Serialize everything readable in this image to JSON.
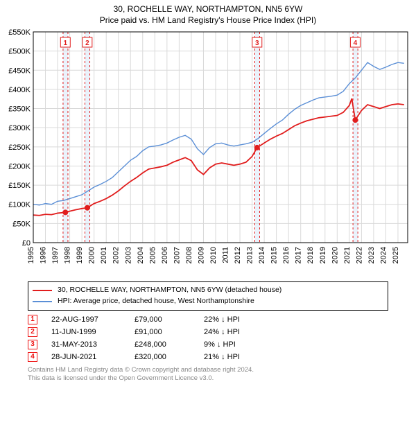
{
  "title": "30, ROCHELLE WAY, NORTHAMPTON, NN5 6YW",
  "subtitle": "Price paid vs. HM Land Registry's House Price Index (HPI)",
  "chart": {
    "type": "line",
    "background_color": "#ffffff",
    "plot_border_color": "#000000",
    "grid_color": "#d9d9d9",
    "band_fill": "#eaf2fb",
    "band_dash_color": "#e11d1d",
    "marker_border_color": "#e11d1d",
    "marker_fill": "#ffffff",
    "marker_text_color": "#e11d1d",
    "y": {
      "min": 0,
      "max": 550000,
      "step": 50000,
      "prefix": "£",
      "suffix": "K",
      "divide": 1000,
      "fontsize": 11
    },
    "x": {
      "min": 1995,
      "max": 2025.8,
      "ticks": [
        1995,
        1996,
        1997,
        1998,
        1999,
        2000,
        2001,
        2002,
        2003,
        2004,
        2005,
        2006,
        2007,
        2008,
        2009,
        2010,
        2011,
        2012,
        2013,
        2014,
        2015,
        2016,
        2017,
        2018,
        2019,
        2020,
        2021,
        2022,
        2023,
        2024,
        2025
      ],
      "fontsize": 11
    },
    "series": [
      {
        "id": "hpi",
        "label": "HPI: Average price, detached house, West Northamptonshire",
        "color": "#5b8fd6",
        "line_width": 1.4,
        "points": [
          [
            1995.0,
            100000
          ],
          [
            1995.5,
            98000
          ],
          [
            1996.0,
            102000
          ],
          [
            1996.5,
            100000
          ],
          [
            1997.0,
            108000
          ],
          [
            1997.5,
            110000
          ],
          [
            1998.0,
            115000
          ],
          [
            1998.5,
            120000
          ],
          [
            1999.0,
            125000
          ],
          [
            1999.5,
            135000
          ],
          [
            2000.0,
            145000
          ],
          [
            2000.5,
            152000
          ],
          [
            2001.0,
            160000
          ],
          [
            2001.5,
            170000
          ],
          [
            2002.0,
            185000
          ],
          [
            2002.5,
            200000
          ],
          [
            2003.0,
            215000
          ],
          [
            2003.5,
            225000
          ],
          [
            2004.0,
            240000
          ],
          [
            2004.5,
            250000
          ],
          [
            2005.0,
            252000
          ],
          [
            2005.5,
            255000
          ],
          [
            2006.0,
            260000
          ],
          [
            2006.5,
            268000
          ],
          [
            2007.0,
            275000
          ],
          [
            2007.5,
            280000
          ],
          [
            2008.0,
            270000
          ],
          [
            2008.5,
            245000
          ],
          [
            2009.0,
            230000
          ],
          [
            2009.5,
            248000
          ],
          [
            2010.0,
            258000
          ],
          [
            2010.5,
            260000
          ],
          [
            2011.0,
            255000
          ],
          [
            2011.5,
            252000
          ],
          [
            2012.0,
            255000
          ],
          [
            2012.5,
            258000
          ],
          [
            2013.0,
            262000
          ],
          [
            2013.5,
            272000
          ],
          [
            2014.0,
            285000
          ],
          [
            2014.5,
            298000
          ],
          [
            2015.0,
            310000
          ],
          [
            2015.5,
            320000
          ],
          [
            2016.0,
            335000
          ],
          [
            2016.5,
            348000
          ],
          [
            2017.0,
            358000
          ],
          [
            2017.5,
            365000
          ],
          [
            2018.0,
            372000
          ],
          [
            2018.5,
            378000
          ],
          [
            2019.0,
            380000
          ],
          [
            2019.5,
            382000
          ],
          [
            2020.0,
            385000
          ],
          [
            2020.5,
            395000
          ],
          [
            2021.0,
            415000
          ],
          [
            2021.5,
            430000
          ],
          [
            2022.0,
            450000
          ],
          [
            2022.5,
            470000
          ],
          [
            2023.0,
            460000
          ],
          [
            2023.5,
            452000
          ],
          [
            2024.0,
            458000
          ],
          [
            2024.5,
            465000
          ],
          [
            2025.0,
            470000
          ],
          [
            2025.5,
            468000
          ]
        ]
      },
      {
        "id": "price_paid",
        "label": "30, ROCHELLE WAY, NORTHAMPTON, NN5 6YW (detached house)",
        "color": "#e11d1d",
        "line_width": 1.8,
        "sale_dot_radius": 4,
        "sale_dot_fill": "#e11d1d",
        "points": [
          [
            1995.0,
            72000
          ],
          [
            1995.5,
            71000
          ],
          [
            1996.0,
            74000
          ],
          [
            1996.5,
            73000
          ],
          [
            1997.0,
            77000
          ],
          [
            1997.64,
            79000
          ],
          [
            1998.0,
            82000
          ],
          [
            1998.5,
            86000
          ],
          [
            1999.0,
            89000
          ],
          [
            1999.44,
            91000
          ],
          [
            2000.0,
            102000
          ],
          [
            2000.5,
            108000
          ],
          [
            2001.0,
            115000
          ],
          [
            2001.5,
            124000
          ],
          [
            2002.0,
            135000
          ],
          [
            2002.5,
            148000
          ],
          [
            2003.0,
            160000
          ],
          [
            2003.5,
            170000
          ],
          [
            2004.0,
            182000
          ],
          [
            2004.5,
            192000
          ],
          [
            2005.0,
            195000
          ],
          [
            2005.5,
            198000
          ],
          [
            2006.0,
            202000
          ],
          [
            2006.5,
            210000
          ],
          [
            2007.0,
            216000
          ],
          [
            2007.5,
            222000
          ],
          [
            2008.0,
            214000
          ],
          [
            2008.5,
            190000
          ],
          [
            2009.0,
            178000
          ],
          [
            2009.5,
            195000
          ],
          [
            2010.0,
            205000
          ],
          [
            2010.5,
            208000
          ],
          [
            2011.0,
            205000
          ],
          [
            2011.5,
            202000
          ],
          [
            2012.0,
            205000
          ],
          [
            2012.5,
            210000
          ],
          [
            2013.0,
            225000
          ],
          [
            2013.41,
            248000
          ],
          [
            2014.0,
            260000
          ],
          [
            2014.5,
            270000
          ],
          [
            2015.0,
            278000
          ],
          [
            2015.5,
            285000
          ],
          [
            2016.0,
            295000
          ],
          [
            2016.5,
            305000
          ],
          [
            2017.0,
            312000
          ],
          [
            2017.5,
            318000
          ],
          [
            2018.0,
            322000
          ],
          [
            2018.5,
            326000
          ],
          [
            2019.0,
            328000
          ],
          [
            2019.5,
            330000
          ],
          [
            2020.0,
            332000
          ],
          [
            2020.5,
            340000
          ],
          [
            2021.0,
            358000
          ],
          [
            2021.2,
            376000
          ],
          [
            2021.49,
            320000
          ],
          [
            2022.0,
            345000
          ],
          [
            2022.5,
            360000
          ],
          [
            2023.0,
            355000
          ],
          [
            2023.5,
            350000
          ],
          [
            2024.0,
            355000
          ],
          [
            2024.5,
            360000
          ],
          [
            2025.0,
            362000
          ],
          [
            2025.5,
            360000
          ]
        ]
      }
    ],
    "sale_markers": [
      {
        "n": "1",
        "x": 1997.64,
        "y": 79000,
        "band": [
          1997.45,
          1997.85
        ]
      },
      {
        "n": "2",
        "x": 1999.44,
        "y": 91000,
        "band": [
          1999.25,
          1999.65
        ]
      },
      {
        "n": "3",
        "x": 2013.41,
        "y": 248000,
        "band": [
          2013.22,
          2013.62
        ]
      },
      {
        "n": "4",
        "x": 2021.49,
        "y": 320000,
        "band": [
          2021.3,
          2021.7
        ]
      }
    ]
  },
  "legend": {
    "border_color": "#000000",
    "fontsize": 10.5,
    "items": [
      {
        "series_id": "price_paid"
      },
      {
        "series_id": "hpi"
      }
    ]
  },
  "sales_table": {
    "fontsize": 11,
    "arrow_glyph": "↓",
    "hpi_label": "HPI",
    "rows": [
      {
        "n": "1",
        "date": "22-AUG-1997",
        "price": "£79,000",
        "diff": "22%"
      },
      {
        "n": "2",
        "date": "11-JUN-1999",
        "price": "£91,000",
        "diff": "24%"
      },
      {
        "n": "3",
        "date": "31-MAY-2013",
        "price": "£248,000",
        "diff": "9%"
      },
      {
        "n": "4",
        "date": "28-JUN-2021",
        "price": "£320,000",
        "diff": "21%"
      }
    ]
  },
  "footnote": {
    "line1": "Contains HM Land Registry data © Crown copyright and database right 2024.",
    "line2": "This data is licensed under the Open Government Licence v3.0.",
    "color": "#888888",
    "fontsize": 9.5
  }
}
